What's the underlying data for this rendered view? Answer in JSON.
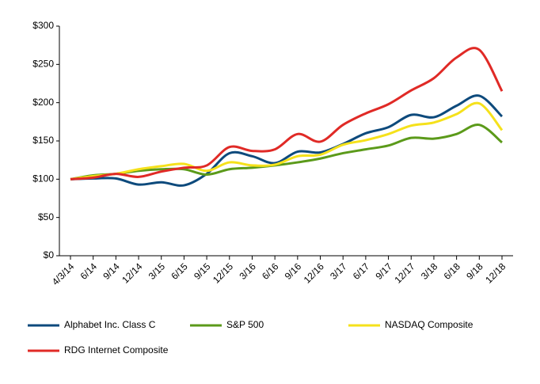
{
  "chart_data": {
    "type": "line",
    "categories": [
      "4/3/14",
      "6/14",
      "9/14",
      "12/14",
      "3/15",
      "6/15",
      "9/15",
      "12/15",
      "3/16",
      "6/16",
      "9/16",
      "12/16",
      "3/17",
      "6/17",
      "9/17",
      "12/17",
      "3/18",
      "6/18",
      "9/18",
      "12/18"
    ],
    "series": [
      {
        "name": "Alphabet Inc. Class C",
        "color": "#0d4a7c",
        "values": [
          100,
          101,
          101,
          93,
          96,
          92,
          107,
          134,
          130,
          121,
          136,
          135,
          146,
          160,
          168,
          184,
          181,
          196,
          209,
          182
        ]
      },
      {
        "name": "S&P 500",
        "color": "#5b9a1a",
        "values": [
          100,
          105,
          107,
          111,
          113,
          113,
          106,
          113,
          115,
          118,
          122,
          127,
          134,
          139,
          144,
          154,
          153,
          159,
          171,
          148
        ]
      },
      {
        "name": "NASDAQ Composite",
        "color": "#f5e11b",
        "values": [
          100,
          104,
          107,
          113,
          117,
          120,
          111,
          122,
          118,
          119,
          130,
          132,
          145,
          151,
          159,
          170,
          174,
          185,
          199,
          164
        ]
      },
      {
        "name": "RDG Internet Composite",
        "color": "#e02a26",
        "values": [
          100,
          102,
          107,
          103,
          110,
          115,
          118,
          142,
          137,
          139,
          159,
          149,
          171,
          186,
          198,
          216,
          232,
          259,
          269,
          215
        ]
      }
    ],
    "ylim": [
      0,
      300
    ],
    "yticks": [
      {
        "value": 0,
        "label": "$0"
      },
      {
        "value": 50,
        "label": "$50"
      },
      {
        "value": 100,
        "label": "$100"
      },
      {
        "value": 150,
        "label": "$150"
      },
      {
        "value": 200,
        "label": "$200"
      },
      {
        "value": 250,
        "label": "$250"
      },
      {
        "value": 300,
        "label": "$300"
      }
    ],
    "grid": false,
    "legend": "bottom"
  }
}
